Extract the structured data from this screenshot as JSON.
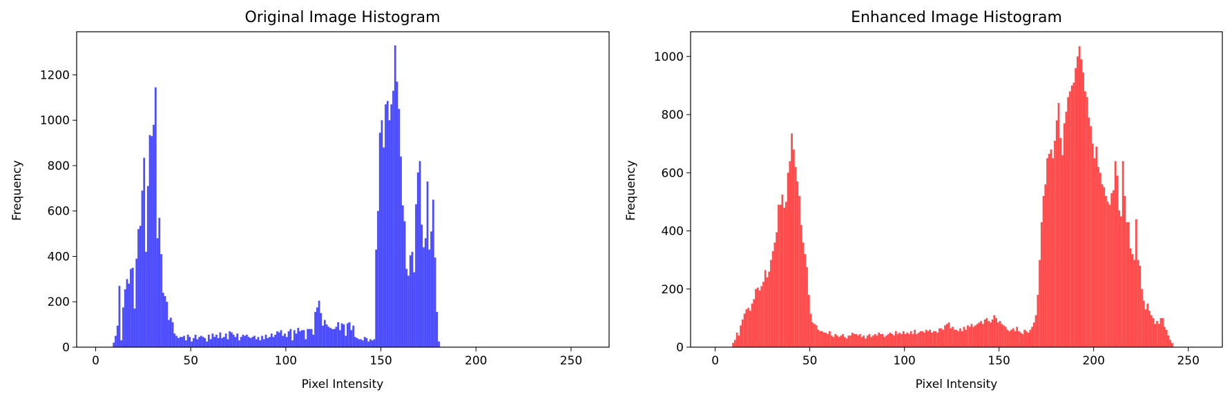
{
  "chart_data": [
    {
      "type": "bar",
      "title": "Original Image Histogram",
      "xlabel": "Pixel Intensity",
      "ylabel": "Frequency",
      "xlim": [
        -10,
        270
      ],
      "ylim": [
        0,
        1390
      ],
      "xticks": [
        0,
        50,
        100,
        150,
        200,
        250
      ],
      "yticks": [
        0,
        200,
        400,
        600,
        800,
        1000,
        1200
      ],
      "grid": false,
      "color": "#4b4bff",
      "series": [
        {
          "bins_start": 9,
          "values": [
            20,
            50,
            95,
            270,
            30,
            175,
            255,
            300,
            280,
            345,
            350,
            170,
            390,
            520,
            535,
            690,
            835,
            420,
            710,
            935,
            930,
            980,
            1145,
            480,
            570,
            410,
            240,
            225,
            200,
            120,
            130,
            110,
            60,
            50,
            40,
            45,
            45,
            50,
            30,
            55,
            45,
            25,
            40,
            55,
            35,
            45,
            50,
            45,
            40,
            25,
            55,
            35,
            60,
            45,
            55,
            40,
            65,
            40,
            45,
            60,
            35,
            70,
            65,
            55,
            45,
            60,
            30,
            45,
            55,
            50,
            55,
            45,
            40,
            45,
            50,
            35,
            45,
            30,
            50,
            35,
            55,
            40,
            45,
            60,
            45,
            55,
            70,
            65,
            75,
            50,
            60,
            45,
            70,
            80,
            30,
            75,
            60,
            85,
            70,
            75,
            75,
            35,
            80,
            80,
            80,
            55,
            155,
            175,
            205,
            150,
            95,
            120,
            100,
            90,
            85,
            80,
            80,
            90,
            110,
            75,
            105,
            100,
            50,
            105,
            110,
            75,
            95,
            45,
            40,
            35,
            35,
            30,
            45,
            40,
            25,
            35,
            30,
            35,
            430,
            600,
            945,
            1000,
            880,
            1070,
            1085,
            1000,
            1070,
            1130,
            1330,
            1170,
            1050,
            840,
            625,
            555,
            345,
            315,
            405,
            420,
            330,
            630,
            770,
            820,
            540,
            440,
            480,
            730,
            430,
            510,
            650,
            395,
            155,
            25
          ]
        }
      ]
    },
    {
      "type": "bar",
      "title": "Enhanced Image Histogram",
      "xlabel": "Pixel Intensity",
      "ylabel": "Frequency",
      "xlim": [
        -13,
        268
      ],
      "ylim": [
        0,
        1085
      ],
      "xticks": [
        0,
        50,
        100,
        150,
        200,
        250
      ],
      "yticks": [
        0,
        200,
        400,
        600,
        800,
        1000
      ],
      "grid": false,
      "color": "#ff4b4b",
      "series": [
        {
          "bins_start": 9,
          "values": [
            15,
            25,
            50,
            40,
            75,
            95,
            115,
            130,
            135,
            125,
            150,
            165,
            200,
            205,
            195,
            210,
            225,
            265,
            240,
            260,
            300,
            330,
            360,
            395,
            490,
            490,
            525,
            480,
            500,
            600,
            640,
            735,
            680,
            620,
            570,
            520,
            420,
            360,
            320,
            275,
            180,
            115,
            85,
            80,
            75,
            60,
            55,
            55,
            50,
            50,
            45,
            55,
            40,
            35,
            45,
            40,
            35,
            40,
            45,
            35,
            30,
            40,
            40,
            50,
            45,
            45,
            40,
            45,
            35,
            40,
            30,
            40,
            45,
            35,
            40,
            45,
            40,
            50,
            45,
            45,
            35,
            40,
            45,
            50,
            45,
            40,
            55,
            45,
            50,
            45,
            55,
            45,
            50,
            45,
            55,
            45,
            60,
            45,
            50,
            55,
            55,
            50,
            60,
            55,
            60,
            50,
            55,
            55,
            50,
            65,
            65,
            60,
            75,
            80,
            85,
            65,
            70,
            60,
            60,
            55,
            65,
            55,
            70,
            60,
            75,
            70,
            80,
            70,
            75,
            80,
            85,
            90,
            80,
            95,
            100,
            90,
            85,
            95,
            110,
            100,
            85,
            90,
            80,
            75,
            70,
            60,
            55,
            60,
            65,
            55,
            70,
            55,
            50,
            45,
            60,
            55,
            50,
            60,
            70,
            85,
            110,
            180,
            300,
            430,
            520,
            560,
            650,
            665,
            680,
            650,
            710,
            780,
            840,
            720,
            660,
            770,
            810,
            860,
            880,
            900,
            910,
            960,
            1000,
            1035,
            990,
            945,
            880,
            860,
            790,
            760,
            700,
            650,
            690,
            620,
            600,
            560,
            550,
            520,
            500,
            490,
            530,
            540,
            640,
            590,
            470,
            450,
            640,
            520,
            430,
            430,
            340,
            320,
            300,
            440,
            300,
            280,
            200,
            160,
            130,
            150,
            125,
            110,
            100,
            80,
            90,
            80,
            100,
            100,
            70,
            60,
            40,
            25,
            15
          ]
        }
      ]
    }
  ]
}
